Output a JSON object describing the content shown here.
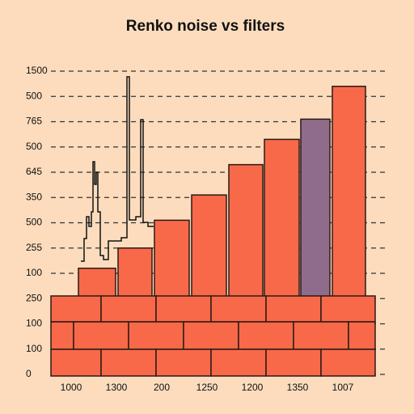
{
  "chart_data": {
    "type": "bar",
    "title": "Renko noise vs filters",
    "categories": [
      "1000",
      "1300",
      "200",
      "1250",
      "1200",
      "1350",
      "1007",
      null
    ],
    "values": [
      4.2,
      5.0,
      6.1,
      7.1,
      8.3,
      9.3,
      10.1,
      11.4
    ],
    "colors": [
      "#f8694a",
      "#f8694a",
      "#f8694a",
      "#f8694a",
      "#f8694a",
      "#f8694a",
      "#8f6c8c",
      "#f8694a"
    ],
    "ylim": [
      0,
      12.2
    ],
    "yticks": [
      {
        "value": 0,
        "label": "0"
      },
      {
        "value": 1,
        "label": "100"
      },
      {
        "value": 2,
        "label": "100"
      },
      {
        "value": 3,
        "label": "250"
      },
      {
        "value": 4,
        "label": "100"
      },
      {
        "value": 5,
        "label": "255"
      },
      {
        "value": 6,
        "label": "500"
      },
      {
        "value": 7,
        "label": "350"
      },
      {
        "value": 8,
        "label": "645"
      },
      {
        "value": 9,
        "label": "500"
      },
      {
        "value": 10,
        "label": "765"
      },
      {
        "value": 11,
        "label": "500"
      },
      {
        "value": 12,
        "label": "1500"
      }
    ],
    "grid": true
  }
}
